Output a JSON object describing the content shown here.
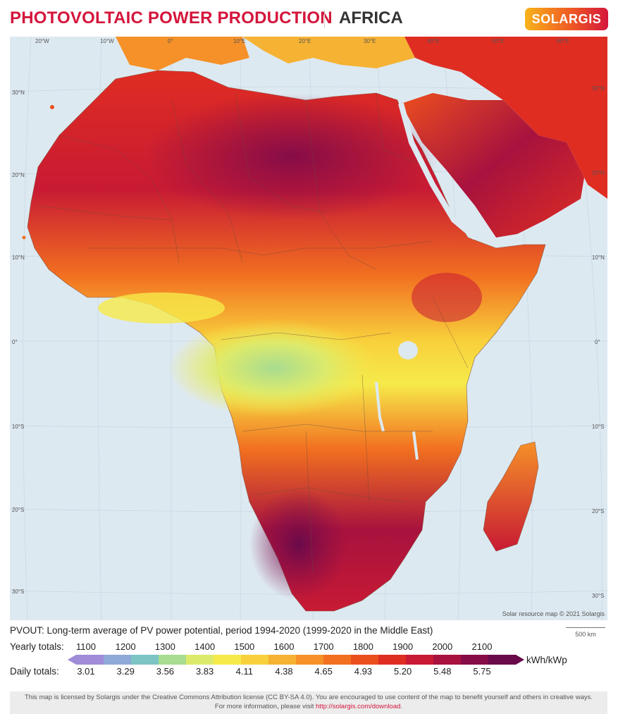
{
  "header": {
    "title": "PHOTOVOLTAIC POWER PRODUCTION",
    "region": "AFRICA",
    "logo": "SOLARGIS",
    "brand_color": "#d4163c"
  },
  "map": {
    "credit": "Solar resource map © 2021 Solargis",
    "lon_labels": [
      "20°W",
      "10°W",
      "0°",
      "10°E",
      "20°E",
      "30°E",
      "40°E",
      "50°E",
      "60°E"
    ],
    "lat_labels_left": [
      "30°N",
      "20°N",
      "10°N",
      "0°",
      "10°S",
      "20°S",
      "30°S"
    ],
    "lat_labels_right": [
      "30°N",
      "20°N",
      "10°N",
      "0°",
      "10°S",
      "20°S",
      "30°S"
    ],
    "ocean_color": "#dde9f1"
  },
  "legend": {
    "caption": "PVOUT: Long-term average of PV power potential, period 1994-2020 (1999-2020 in the Middle East)",
    "yearly_label": "Yearly totals:",
    "daily_label": "Daily totals:",
    "yearly": [
      "1100",
      "1200",
      "1300",
      "1400",
      "1500",
      "1600",
      "1700",
      "1800",
      "1900",
      "2000",
      "2100"
    ],
    "daily": [
      "3.01",
      "3.29",
      "3.56",
      "3.83",
      "4.11",
      "4.38",
      "4.65",
      "4.93",
      "5.20",
      "5.48",
      "5.75"
    ],
    "unit": "kWh/kWp",
    "scale_label": "500 km",
    "colors": [
      "#a08cd8",
      "#8ea8d8",
      "#7cc4c4",
      "#a8dc90",
      "#dcea6c",
      "#f6ea4a",
      "#f8d03c",
      "#f6b232",
      "#f59128",
      "#f27020",
      "#ec4f1e",
      "#df2d22",
      "#c81a34",
      "#a8123e",
      "#860c48",
      "#6a0a4a"
    ]
  },
  "license": {
    "line1": "This map is licensed by Solargis under the Creative Commons Attribution license (CC BY-SA 4.0). You are encouraged to use content of the map to benefit yourself and others in creative ways.",
    "line2_prefix": "For more information, please visit ",
    "link": "http://solargis.com/download",
    "line2_suffix": "."
  }
}
